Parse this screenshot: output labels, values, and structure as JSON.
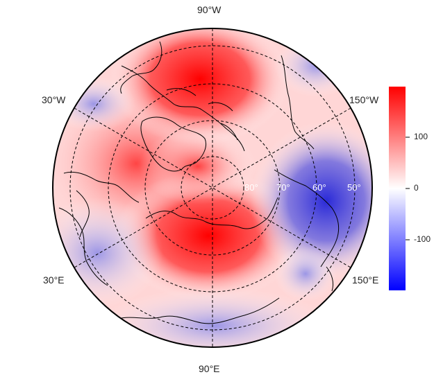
{
  "map": {
    "projection": "north-polar-stereographic",
    "longitude_labels": {
      "top": "90°W",
      "bottom": "90°E",
      "upper_left": "30°W",
      "upper_right": "150°W",
      "lower_left": "30°E",
      "lower_right": "150°E"
    },
    "latitude_labels": [
      "80°",
      "70°",
      "60°",
      "50°"
    ],
    "field": {
      "description_colors": {
        "high": "#ff0000",
        "mid": "#ffffff",
        "low": "#0000ff"
      },
      "highs": [
        {
          "lat": 65,
          "lon": -95,
          "value": 180
        },
        {
          "lat": 78,
          "lon": 105,
          "value": 175
        },
        {
          "lat": 55,
          "lon": -20,
          "value": 90
        }
      ],
      "lows": [
        {
          "lat": 55,
          "lon": 165,
          "value": -160
        },
        {
          "lat": 47,
          "lon": 35,
          "value": -90
        },
        {
          "lat": 40,
          "lon": 95,
          "value": -70
        }
      ]
    }
  },
  "colorbar": {
    "ticks": [
      "100",
      "0",
      "-100"
    ],
    "min": -190,
    "max": 190,
    "colors": [
      "#0000ff",
      "#ffffff",
      "#ff0000"
    ]
  }
}
